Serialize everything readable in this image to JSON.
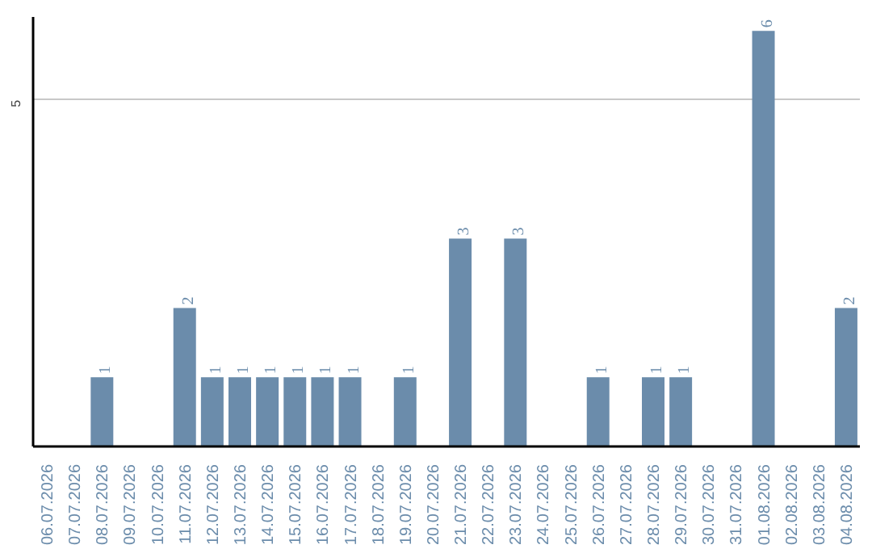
{
  "chart_data": {
    "type": "bar",
    "categories": [
      "06.07.2026",
      "07.07.2026",
      "08.07.2026",
      "09.07.2026",
      "10.07.2026",
      "11.07.2026",
      "12.07.2026",
      "13.07.2026",
      "14.07.2026",
      "15.07.2026",
      "16.07.2026",
      "17.07.2026",
      "18.07.2026",
      "19.07.2026",
      "20.07.2026",
      "21.07.2026",
      "22.07.2026",
      "23.07.2026",
      "24.07.2026",
      "25.07.2026",
      "26.07.2026",
      "27.07.2026",
      "28.07.2026",
      "29.07.2026",
      "30.07.2026",
      "31.07.2026",
      "01.08.2026",
      "02.08.2026",
      "03.08.2026",
      "04.08.2026"
    ],
    "values": [
      0,
      0,
      1,
      0,
      0,
      2,
      1,
      1,
      1,
      1,
      1,
      1,
      0,
      1,
      0,
      3,
      0,
      3,
      0,
      0,
      1,
      0,
      1,
      1,
      0,
      0,
      6,
      0,
      0,
      2
    ],
    "value_labels": [
      null,
      null,
      "1",
      null,
      null,
      "2",
      "1",
      "1",
      "1",
      "1",
      "1",
      "1",
      null,
      "1",
      null,
      "3",
      null,
      "3",
      null,
      null,
      "1",
      null,
      "1",
      "1",
      null,
      null,
      "6",
      null,
      null,
      "2"
    ],
    "color": "#6b8cab",
    "ylim": [
      0,
      6.2
    ],
    "yticks": [
      5
    ],
    "grid": "y"
  }
}
